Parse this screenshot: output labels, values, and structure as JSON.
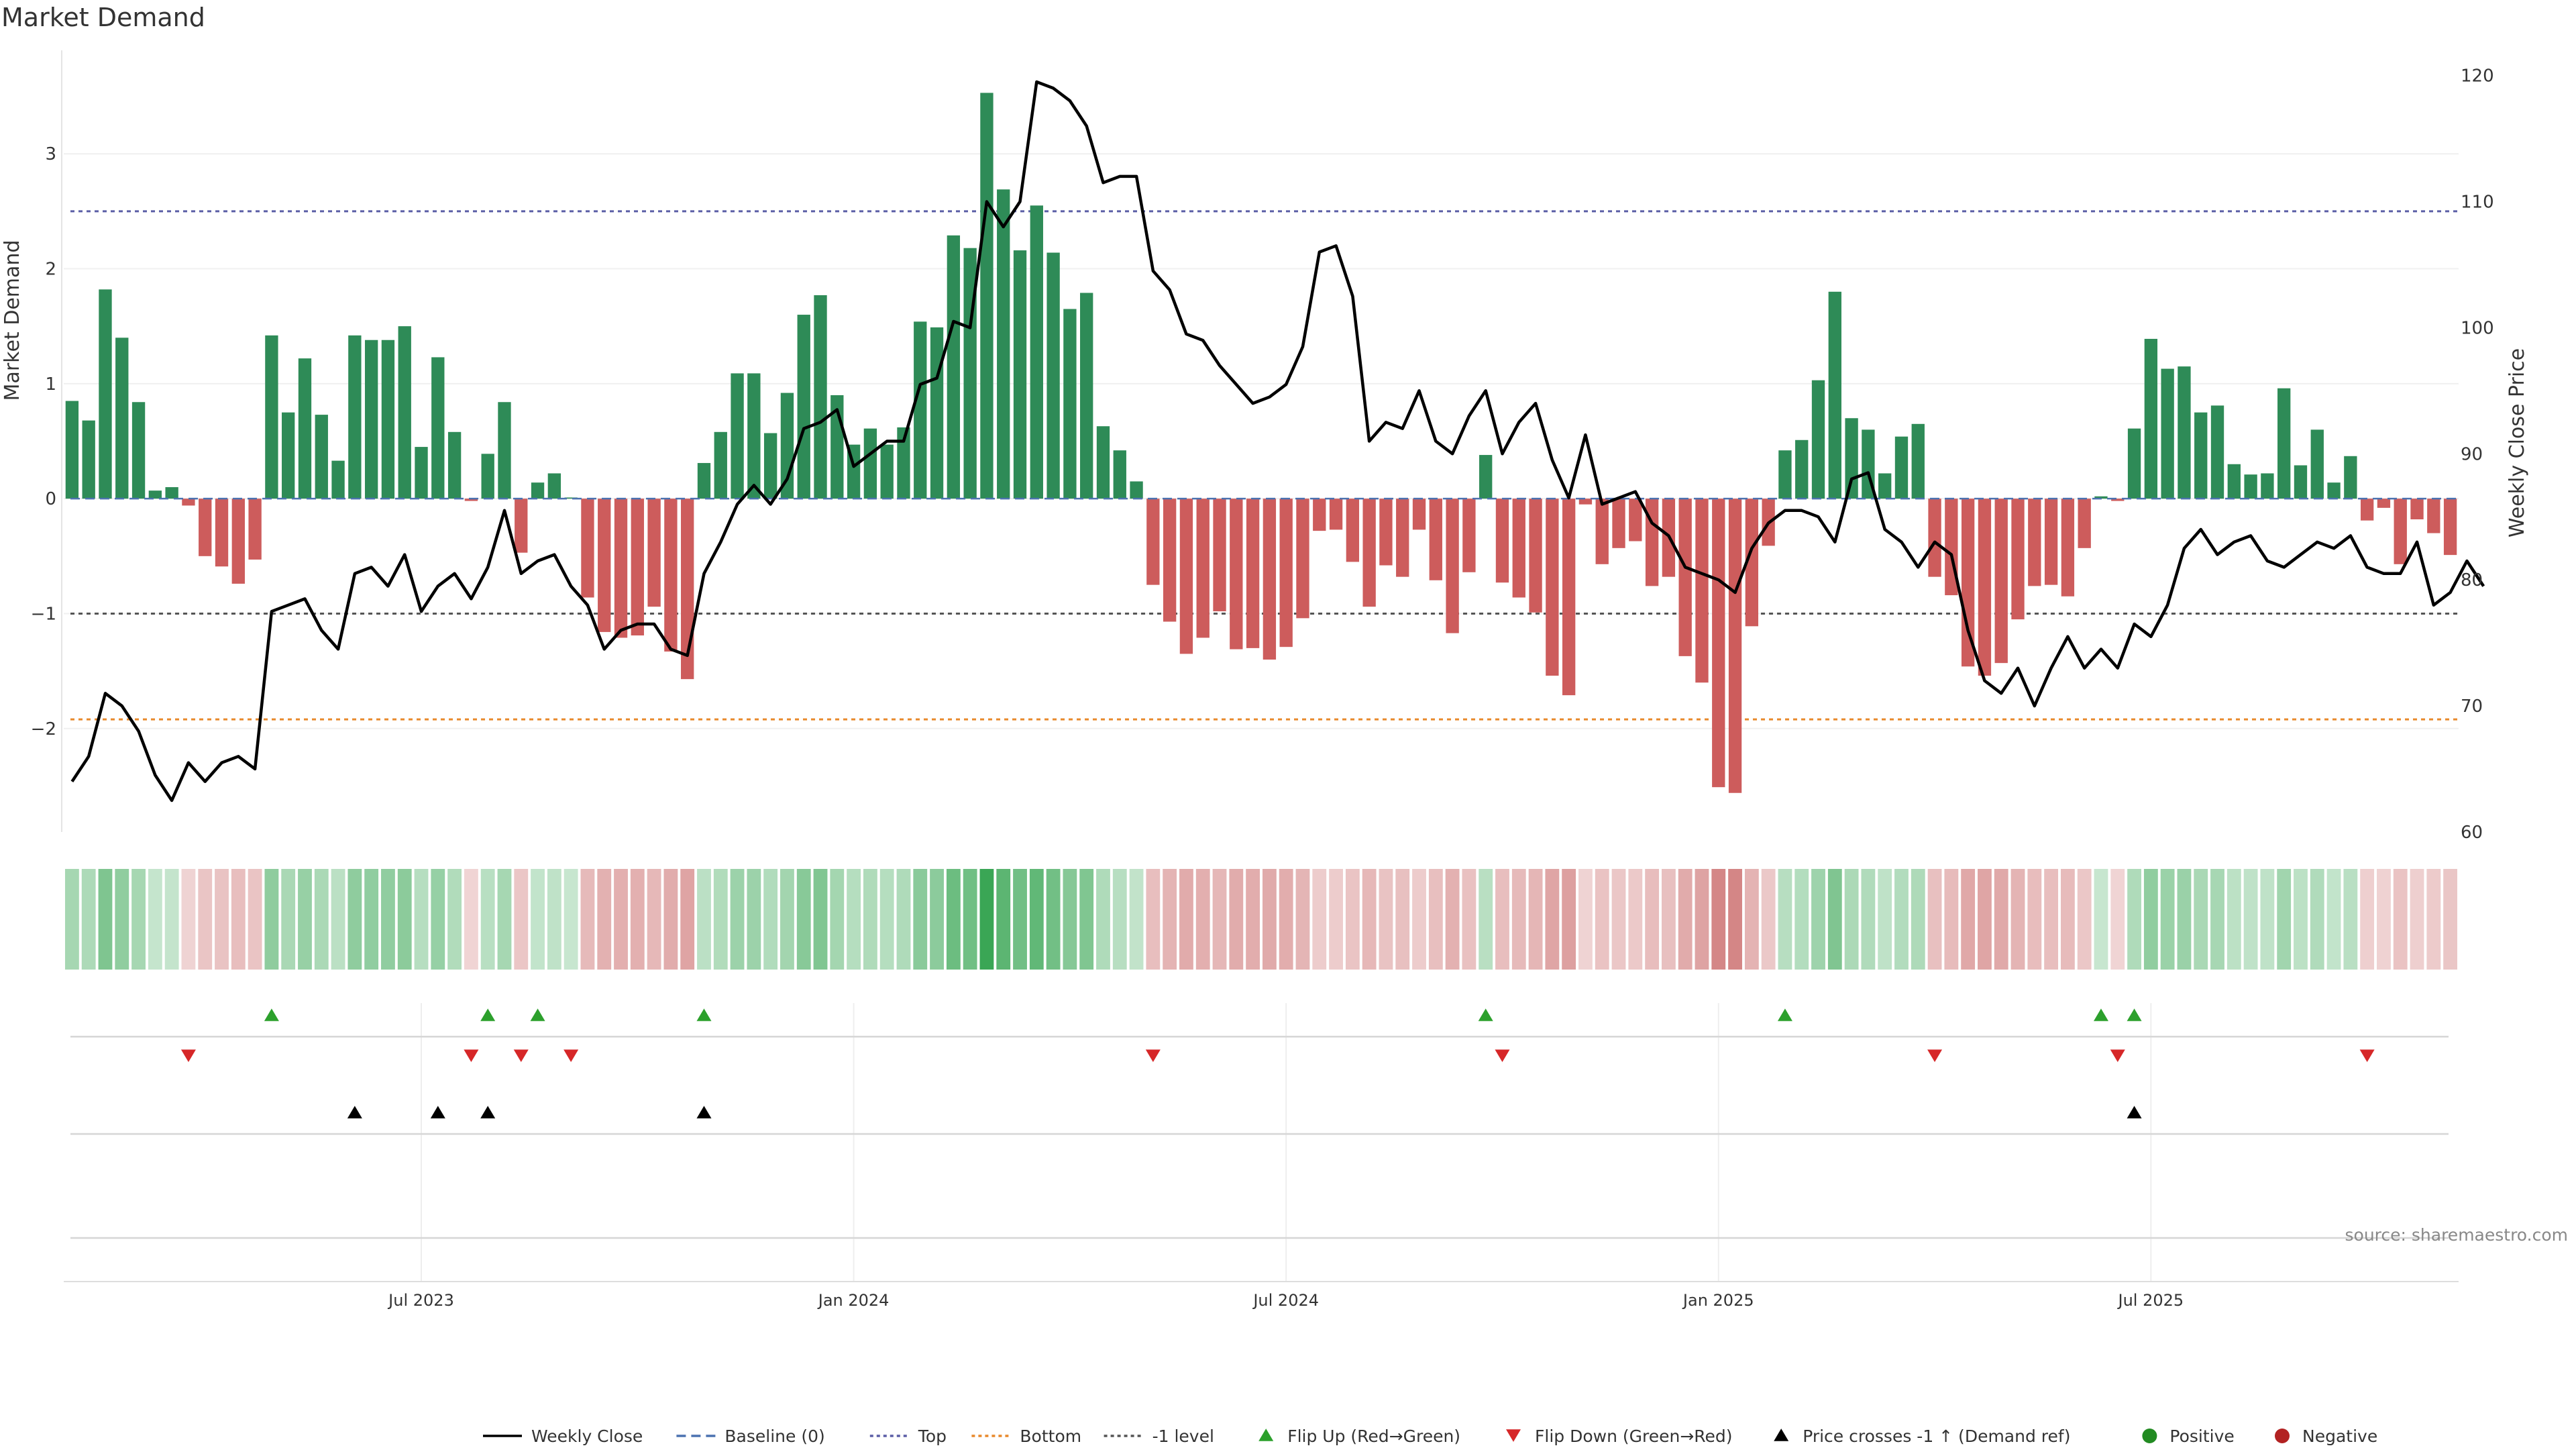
{
  "chart_data": {
    "type": "bar",
    "title": "Market Demand",
    "source": "source: sharemaestro.com",
    "left_axis": {
      "label": "Market Demand",
      "ylim": [
        -2.9,
        3.9
      ],
      "ticks": [
        -2,
        -1,
        0,
        1,
        2,
        3
      ],
      "tick_labels": [
        "−2",
        "−1",
        "0",
        "1",
        "2",
        "3"
      ]
    },
    "right_axis": {
      "label": "Weekly Close Price",
      "ylim": [
        60,
        122
      ],
      "ticks": [
        60,
        70,
        80,
        90,
        100,
        110,
        120
      ],
      "tick_labels": [
        "60",
        "70",
        "80",
        "90",
        "100",
        "110",
        "120"
      ]
    },
    "reference_lines": [
      {
        "name": "Top",
        "value": 2.5,
        "color": "#5b5ea6"
      },
      {
        "name": "-1 level",
        "value": -1,
        "color": "#555555"
      },
      {
        "name": "Bottom",
        "value": -1.92,
        "color": "#e8892b"
      }
    ],
    "x_ticks": [
      {
        "label": "Jul 2023",
        "index": 21.5
      },
      {
        "label": "Jan 2024",
        "index": 47.5
      },
      {
        "label": "Jul 2024",
        "index": 73.5
      },
      {
        "label": "Jan 2025",
        "index": 99.5
      },
      {
        "label": "Jul 2025",
        "index": 125.5
      }
    ],
    "demand": [
      0.85,
      0.68,
      1.82,
      1.4,
      0.84,
      0.07,
      0.1,
      -0.06,
      -0.5,
      -0.59,
      -0.74,
      -0.53,
      1.42,
      0.75,
      1.22,
      0.73,
      0.33,
      1.42,
      1.38,
      1.38,
      1.5,
      0.45,
      1.23,
      0.58,
      -0.02,
      0.39,
      0.84,
      -0.47,
      0.14,
      0.22,
      0.01,
      -0.86,
      -1.16,
      -1.21,
      -1.19,
      -0.94,
      -1.33,
      -1.57,
      0.31,
      0.58,
      1.09,
      1.09,
      0.57,
      0.92,
      1.6,
      1.77,
      0.9,
      0.47,
      0.61,
      0.47,
      0.62,
      1.54,
      1.49,
      2.29,
      2.18,
      3.53,
      2.69,
      2.16,
      2.55,
      2.14,
      1.65,
      1.79,
      0.63,
      0.42,
      0.15,
      -0.75,
      -1.07,
      -1.35,
      -1.21,
      -0.98,
      -1.31,
      -1.3,
      -1.4,
      -1.29,
      -1.04,
      -0.28,
      -0.27,
      -0.55,
      -0.94,
      -0.58,
      -0.68,
      -0.27,
      -0.71,
      -1.17,
      -0.64,
      0.38,
      -0.73,
      -0.86,
      -0.99,
      -1.54,
      -1.71,
      -0.05,
      -0.57,
      -0.43,
      -0.37,
      -0.76,
      -0.68,
      -1.37,
      -1.6,
      -2.51,
      -2.56,
      -1.11,
      -0.41,
      0.42,
      0.51,
      1.03,
      1.8,
      0.7,
      0.6,
      0.22,
      0.54,
      0.65,
      -0.68,
      -0.84,
      -1.46,
      -1.54,
      -1.43,
      -1.05,
      -0.76,
      -0.75,
      -0.85,
      -0.43,
      0.02,
      -0.02,
      0.61,
      1.39,
      1.13,
      1.15,
      0.75,
      0.81,
      0.3,
      0.21,
      0.22,
      0.96,
      0.29,
      0.6,
      0.14,
      0.37,
      -0.19,
      -0.08,
      -0.57,
      -0.18,
      -0.3,
      -0.49
    ],
    "close": [
      64.0,
      66.0,
      71.0,
      70.0,
      68.0,
      64.5,
      62.5,
      65.5,
      64.0,
      65.5,
      66.0,
      65.0,
      77.5,
      78.0,
      78.5,
      76.0,
      74.5,
      80.5,
      81.0,
      79.5,
      82.0,
      77.5,
      79.5,
      80.5,
      78.5,
      81.0,
      85.5,
      80.5,
      81.5,
      82.0,
      79.5,
      78.0,
      74.5,
      76.0,
      76.5,
      76.5,
      74.5,
      74.0,
      80.5,
      83.0,
      86.0,
      87.5,
      86.0,
      88.0,
      92.0,
      92.5,
      93.5,
      89.0,
      90.0,
      91.0,
      91.0,
      95.5,
      96.0,
      100.5,
      100.0,
      110.0,
      108.0,
      110.0,
      119.5,
      119.0,
      118.0,
      116.0,
      111.5,
      112.0,
      112.0,
      104.5,
      103.0,
      99.5,
      99.0,
      97.0,
      95.5,
      94.0,
      94.5,
      95.5,
      98.5,
      106.0,
      106.5,
      102.5,
      91.0,
      92.5,
      92.0,
      95.0,
      91.0,
      90.0,
      93.0,
      95.0,
      90.0,
      92.5,
      94.0,
      89.5,
      86.5,
      91.5,
      86.0,
      86.5,
      87.0,
      84.5,
      83.5,
      81.0,
      80.5,
      80.0,
      79.0,
      82.5,
      84.5,
      85.5,
      85.5,
      85.0,
      83.0,
      88.0,
      88.5,
      84.0,
      83.0,
      81.0,
      83.0,
      82.0,
      76.0,
      72.0,
      71.0,
      73.0,
      70.0,
      73.0,
      75.5,
      73.0,
      74.5,
      73.0,
      76.5,
      75.5,
      78.0,
      82.5,
      84.0,
      82.0,
      83.0,
      83.5,
      81.5,
      81.0,
      82.0,
      83.0,
      82.5,
      83.5,
      81.0,
      80.5,
      80.5,
      83.0,
      78.0,
      79.0,
      81.5,
      79.5
    ],
    "flip_up": [
      12,
      25,
      28,
      38,
      85,
      103,
      122,
      124
    ],
    "flip_down": [
      7,
      24,
      27,
      30,
      65,
      86,
      112,
      123,
      138
    ],
    "price_crosses": [
      17,
      22,
      25,
      38,
      124
    ],
    "colors": {
      "positive": "#2e8b57",
      "negative": "#cd5c5c",
      "close": "#000000",
      "flip_up": "#2ca02c",
      "flip_down": "#d62728",
      "cross": "#000000"
    },
    "legend": [
      {
        "label": "Weekly Close",
        "kind": "line-solid"
      },
      {
        "label": "Baseline (0)",
        "kind": "line-dashed"
      },
      {
        "label": "Top",
        "kind": "line-dotted-blue"
      },
      {
        "label": "Bottom",
        "kind": "line-dotted-orange"
      },
      {
        "label": "-1 level",
        "kind": "line-dotted-gray"
      },
      {
        "label": "Flip Up (Red→Green)",
        "kind": "tri-up-green"
      },
      {
        "label": "Flip Down (Green→Red)",
        "kind": "tri-down-red"
      },
      {
        "label": "Price crosses -1 ↑ (Demand ref)",
        "kind": "tri-up-black"
      },
      {
        "label": "Positive",
        "kind": "dot-green"
      },
      {
        "label": "Negative",
        "kind": "dot-red"
      }
    ]
  }
}
